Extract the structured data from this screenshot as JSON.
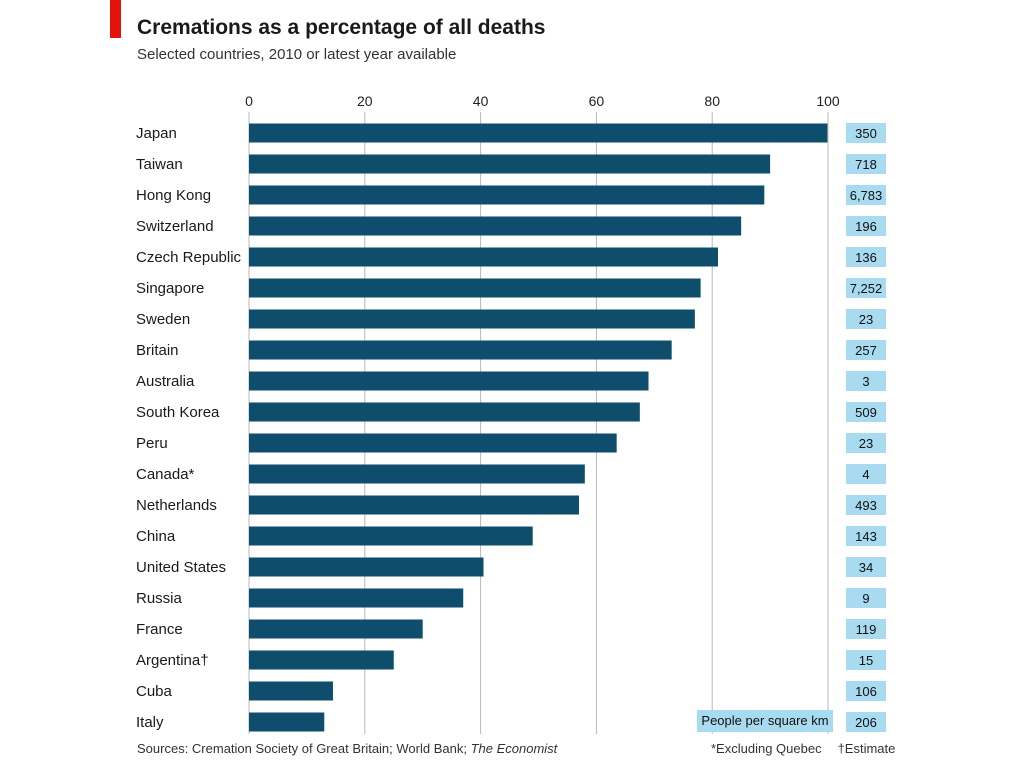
{
  "title": "Cremations as a percentage of all deaths",
  "subtitle": "Selected countries, 2010 or latest year available",
  "sources_prefix": "Sources: Cremation Society of Great Britain; World Bank; ",
  "sources_italic": "The Economist",
  "note_quebec": "*Excluding Quebec",
  "note_estimate": "†Estimate",
  "density_label": "People per square km",
  "colors": {
    "bar": "#0e4d6b",
    "density_box": "#a8daf0",
    "accent": "#e3120b",
    "grid": "#b8b8b8"
  },
  "chart_data": {
    "type": "bar",
    "orientation": "horizontal",
    "xlim": [
      0,
      100
    ],
    "xticks": [
      "0",
      "20",
      "40",
      "60",
      "80",
      "100"
    ],
    "grid": true,
    "categories": [
      "Japan",
      "Taiwan",
      "Hong Kong",
      "Switzerland",
      "Czech Republic",
      "Singapore",
      "Sweden",
      "Britain",
      "Australia",
      "South Korea",
      "Peru",
      "Canada*",
      "Netherlands",
      "China",
      "United States",
      "Russia",
      "France",
      "Argentina†",
      "Cuba",
      "Italy"
    ],
    "values": [
      99.9,
      90,
      89,
      85,
      81,
      78,
      77,
      73,
      69,
      67.5,
      63.5,
      58,
      57,
      49,
      40.5,
      37,
      30,
      25,
      14.5,
      13
    ],
    "people_per_sq_km": [
      "350",
      "718",
      "6,783",
      "196",
      "136",
      "7,252",
      "23",
      "257",
      "3",
      "509",
      "23",
      "4",
      "493",
      "143",
      "34",
      "9",
      "119",
      "15",
      "106",
      "206"
    ]
  }
}
